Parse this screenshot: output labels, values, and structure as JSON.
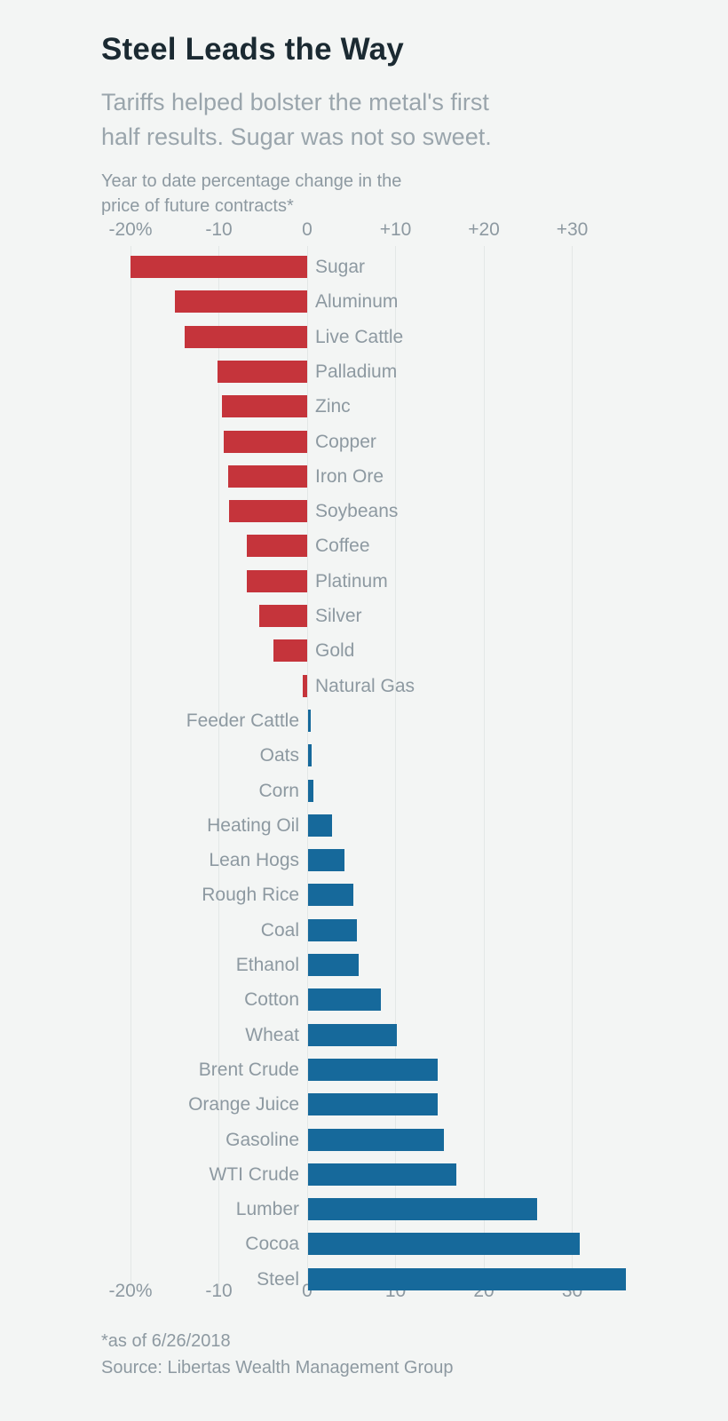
{
  "header": {
    "title": "Steel Leads the Way",
    "subtitle_lines": [
      "Tariffs helped bolster the metal's first",
      "half results. Sugar was not so sweet."
    ],
    "note_lines": [
      "Year to date percentage change in the",
      "price of  future contracts*"
    ]
  },
  "chart_data": {
    "type": "bar",
    "orientation": "horizontal",
    "title": "Steel Leads the Way",
    "xlabel": "Year to date percentage change in the price of future contracts*",
    "categories": [
      "Sugar",
      "Aluminum",
      "Live Cattle",
      "Palladium",
      "Zinc",
      "Copper",
      "Iron Ore",
      "Soybeans",
      "Coffee",
      "Platinum",
      "Silver",
      "Gold",
      "Natural Gas",
      "Feeder Cattle",
      "Oats",
      "Corn",
      "Heating Oil",
      "Lean Hogs",
      "Rough Rice",
      "Coal",
      "Ethanol",
      "Cotton",
      "Wheat",
      "Brent Crude",
      "Orange Juice",
      "Gasoline",
      "WTI Crude",
      "Lumber",
      "Cocoa",
      "Steel"
    ],
    "values": [
      -20.0,
      -15.0,
      -13.9,
      -10.2,
      -9.6,
      -9.4,
      -8.9,
      -8.8,
      -6.8,
      -6.8,
      -5.4,
      -3.8,
      -0.5,
      0.3,
      0.4,
      0.6,
      2.7,
      4.1,
      5.1,
      5.5,
      5.7,
      8.2,
      10.0,
      14.7,
      14.7,
      15.4,
      16.8,
      25.9,
      30.8,
      36.0
    ],
    "colors": {
      "negative": "#c5343b",
      "positive": "#16699b"
    },
    "axis": {
      "tick_values": [
        -20,
        -10,
        0,
        10,
        20,
        30
      ],
      "top_tick_labels": [
        "-20%",
        "-10",
        "0",
        "+10",
        "+20",
        "+30"
      ],
      "bottom_tick_labels": [
        "-20%",
        "-10",
        "0",
        "10",
        "20",
        "30"
      ],
      "xlim": [
        -22,
        37
      ],
      "grid": true
    },
    "unit": "percent"
  },
  "footer": {
    "asof": "*as of 6/26/2018",
    "source": "Source: Libertas Wealth Management Group"
  }
}
